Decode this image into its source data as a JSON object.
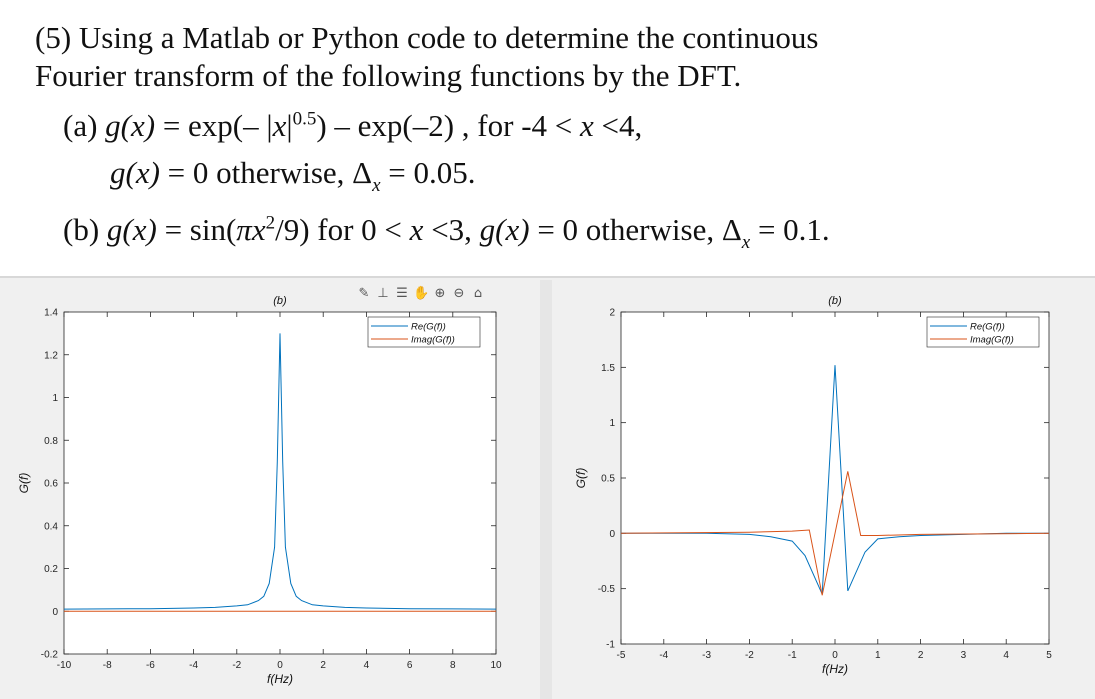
{
  "problem": {
    "line1": "(5) Using a Matlab or Python code to determine the continuous",
    "line2": "Fourier transform of the following functions by the DFT.",
    "a_label": "(a) ",
    "a_gx": "g(x)",
    "a_eq1": " = exp(– |",
    "a_x": "x",
    "a_eq2": "|",
    "a_exp": "0.5",
    "a_eq3": ") –  exp(–2) , for -4 < ",
    "a_x2": "x",
    "a_eq4": " <4,",
    "b1_gx": "g(x)",
    "b1_text": " = 0 otherwise, Δ",
    "b1_sub": "x",
    "b1_val": " = 0.05.",
    "b_label": "(b) ",
    "b_gx": "g(x)",
    "b_eq1": " = sin(",
    "b_pix": "πx",
    "b_exp": "2",
    "b_eq2": "/9) for 0 < ",
    "b_x": "x",
    "b_eq3": " <3, ",
    "b_gx2": "g(x)",
    "b_eq4": " = 0 otherwise, Δ",
    "b_sub": "x",
    "b_val": " = 0.1."
  },
  "toolbar": {
    "icons": [
      "brush-icon",
      "data-tips-icon",
      "legend-icon",
      "pan-icon",
      "zoom-in-icon",
      "zoom-out-icon",
      "home-icon"
    ],
    "glyphs": [
      "✎",
      "⊥",
      "☰",
      "✋",
      "⊕",
      "⊖",
      "⌂"
    ]
  },
  "chart_data": [
    {
      "type": "line",
      "title": "(b)",
      "xlabel": "f(Hz)",
      "ylabel": "G(f)",
      "xlim": [
        -10,
        10
      ],
      "ylim": [
        -0.2,
        1.4
      ],
      "xticks": [
        "-10",
        "-8",
        "-6",
        "-4",
        "-2",
        "0",
        "2",
        "4",
        "6",
        "8",
        "10"
      ],
      "yticks": [
        "-0.2",
        "0",
        "0.2",
        "0.4",
        "0.6",
        "0.8",
        "1",
        "1.2",
        "1.4"
      ],
      "legend_position": "top-right",
      "grid": false,
      "series": [
        {
          "name": "Re(G(f))",
          "color": "#0072BD",
          "x": [
            -10,
            -8,
            -6,
            -4,
            -3,
            -2,
            -1.5,
            -1,
            -0.75,
            -0.5,
            -0.25,
            -0.125,
            0,
            0.125,
            0.25,
            0.5,
            0.75,
            1,
            1.5,
            2,
            3,
            4,
            6,
            8,
            10
          ],
          "y": [
            0.01,
            0.011,
            0.012,
            0.015,
            0.018,
            0.025,
            0.03,
            0.05,
            0.07,
            0.13,
            0.3,
            0.7,
            1.3,
            0.7,
            0.3,
            0.13,
            0.07,
            0.05,
            0.03,
            0.025,
            0.018,
            0.015,
            0.012,
            0.011,
            0.01
          ]
        },
        {
          "name": "Imag(G(f))",
          "color": "#D95319",
          "x": [
            -10,
            10
          ],
          "y": [
            0,
            0
          ]
        }
      ]
    },
    {
      "type": "line",
      "title": "(b)",
      "xlabel": "f(Hz)",
      "ylabel": "G(f)",
      "xlim": [
        -5,
        5
      ],
      "ylim": [
        -1,
        2
      ],
      "xticks": [
        "-5",
        "-4",
        "-3",
        "-2",
        "-1",
        "0",
        "1",
        "2",
        "3",
        "4",
        "5"
      ],
      "yticks": [
        "-1",
        "-0.5",
        "0",
        "0.5",
        "1",
        "1.5",
        "2"
      ],
      "legend_position": "top-right",
      "grid": false,
      "series": [
        {
          "name": "Re(G(f))",
          "color": "#0072BD",
          "x": [
            -5,
            -4,
            -3,
            -2,
            -1.5,
            -1,
            -0.7,
            -0.3,
            0,
            0.3,
            0.7,
            1,
            1.5,
            2,
            3,
            4,
            5
          ],
          "y": [
            0,
            0,
            0,
            -0.01,
            -0.03,
            -0.07,
            -0.2,
            -0.55,
            1.52,
            -0.52,
            -0.17,
            -0.05,
            -0.03,
            -0.02,
            -0.01,
            0,
            0
          ]
        },
        {
          "name": "Imag(G(f))",
          "color": "#D95319",
          "x": [
            -5,
            -2,
            -1,
            -0.6,
            -0.3,
            0.3,
            0.6,
            1,
            2,
            5
          ],
          "y": [
            0,
            0.01,
            0.02,
            0.03,
            -0.56,
            0.56,
            -0.02,
            -0.02,
            -0.01,
            0
          ]
        }
      ]
    }
  ]
}
